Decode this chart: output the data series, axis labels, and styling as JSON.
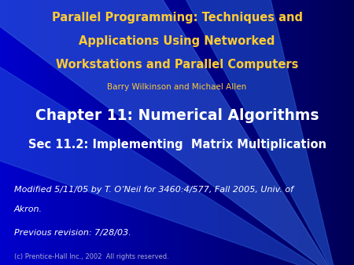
{
  "title_line1": "Parallel Programming: Techniques and",
  "title_line2": "Applications Using Networked",
  "title_line3": "Workstations and Parallel Computers",
  "author": "Barry Wilkinson and Michael Allen",
  "chapter_title": "Chapter 11: Numerical Algorithms",
  "section_title": "Sec 11.2: Implementing  Matrix Multiplication",
  "modified_line1": "Modified 5/11/05 by T. O’Neil for 3460:4/577, Fall 2005, Univ. of",
  "modified_line2": "Akron.",
  "previous_text": "Previous revision: 7/28/03.",
  "copyright_text": "(c) Prentice-Hall Inc., 2002  All rights reserved.",
  "title_color": "#ffcc33",
  "author_color": "#ffcc33",
  "chapter_color": "#ffffff",
  "section_color": "#ffffff",
  "modified_color": "#ffffff",
  "copyright_color": "#aaaacc",
  "title_fontsize": 10.5,
  "author_fontsize": 7.5,
  "chapter_fontsize": 13.5,
  "section_fontsize": 10.5,
  "modified_fontsize": 8.0,
  "copyright_fontsize": 6.0,
  "bg_left": "#0000bb",
  "bg_right": "#000066"
}
